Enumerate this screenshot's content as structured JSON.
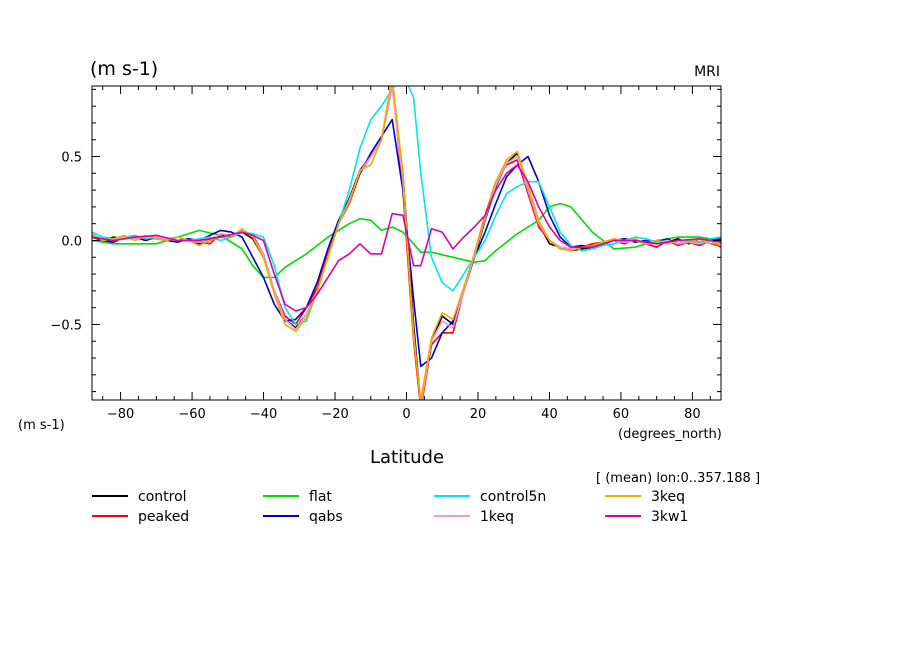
{
  "chart_data": {
    "type": "line",
    "title_left": "(m s-1)",
    "title_right": "MRI",
    "ylabel": "(m s-1)",
    "xlabel": "Latitude",
    "xunit": "(degrees_north)",
    "note": "[ (mean) lon:0..357.188 ]",
    "xlim": [
      -88,
      88
    ],
    "ylim": [
      -0.95,
      0.92
    ],
    "xticks": [
      -80,
      -60,
      -40,
      -20,
      0,
      20,
      40,
      60,
      80
    ],
    "xtick_labels": [
      "−80",
      "−60",
      "−40",
      "−20",
      "0",
      "20",
      "40",
      "60",
      "80"
    ],
    "yticks": [
      -0.5,
      0,
      0.5
    ],
    "ytick_labels": [
      "−0.5",
      "0.0",
      "0.5"
    ],
    "grid": false,
    "legend_position": "bottom",
    "series": [
      {
        "name": "control",
        "color": "#000000",
        "dashed": false,
        "x": [
          -88,
          -85,
          -82,
          -79,
          -76,
          -73,
          -70,
          -67,
          -64,
          -61,
          -58,
          -55,
          -52,
          -49,
          -46,
          -43,
          -40,
          -37,
          -34,
          -31,
          -28,
          -25,
          -22,
          -19,
          -16,
          -13,
          -10,
          -7,
          -4,
          -1,
          2,
          4,
          7,
          10,
          13,
          16,
          19,
          22,
          25,
          28,
          31,
          34,
          37,
          40,
          43,
          46,
          49,
          52,
          55,
          58,
          61,
          64,
          67,
          70,
          73,
          76,
          79,
          82,
          85,
          88
        ],
        "y": [
          0.03,
          0.0,
          0.02,
          0.01,
          0.02,
          0.0,
          0.02,
          0.01,
          0.0,
          0.01,
          -0.02,
          0.01,
          0.03,
          0.02,
          0.05,
          0.01,
          -0.1,
          -0.3,
          -0.47,
          -0.52,
          -0.44,
          -0.3,
          -0.1,
          0.1,
          0.25,
          0.42,
          0.5,
          0.6,
          0.92,
          0.4,
          -0.5,
          -0.98,
          -0.6,
          -0.45,
          -0.5,
          -0.3,
          -0.1,
          0.12,
          0.32,
          0.46,
          0.52,
          0.3,
          0.1,
          -0.02,
          -0.04,
          -0.06,
          -0.05,
          -0.04,
          -0.02,
          0.0,
          0.01,
          0.0,
          -0.02,
          0.0,
          -0.01,
          0.01,
          -0.02,
          0.01,
          -0.02,
          -0.03
        ]
      },
      {
        "name": "peaked",
        "color": "#ff0000",
        "dashed": false,
        "x": [
          -88,
          -85,
          -82,
          -79,
          -76,
          -73,
          -70,
          -67,
          -64,
          -61,
          -58,
          -55,
          -52,
          -49,
          -46,
          -43,
          -40,
          -37,
          -34,
          -31,
          -28,
          -25,
          -22,
          -19,
          -16,
          -13,
          -10,
          -7,
          -4,
          -1,
          2,
          4,
          7,
          10,
          13,
          16,
          19,
          22,
          25,
          28,
          31,
          34,
          37,
          40,
          43,
          46,
          49,
          52,
          55,
          58,
          61,
          64,
          67,
          70,
          73,
          76,
          79,
          82,
          85,
          88
        ],
        "y": [
          0.02,
          0.01,
          -0.01,
          0.02,
          0.01,
          0.02,
          0.03,
          0.01,
          0.0,
          0.0,
          -0.01,
          -0.02,
          0.04,
          0.03,
          0.06,
          0.03,
          -0.08,
          -0.3,
          -0.45,
          -0.5,
          -0.4,
          -0.28,
          -0.08,
          0.1,
          0.22,
          0.4,
          0.5,
          0.6,
          0.95,
          0.3,
          -0.6,
          -1.0,
          -0.62,
          -0.55,
          -0.55,
          -0.3,
          -0.08,
          0.15,
          0.35,
          0.45,
          0.48,
          0.28,
          0.08,
          0.0,
          -0.04,
          -0.05,
          -0.04,
          -0.02,
          -0.01,
          0.0,
          -0.02,
          0.01,
          -0.02,
          -0.04,
          0.0,
          -0.03,
          -0.01,
          -0.03,
          0.0,
          -0.04
        ]
      },
      {
        "name": "flat",
        "color": "#00dd00",
        "dashed": false,
        "x": [
          -88,
          -82,
          -76,
          -70,
          -64,
          -58,
          -52,
          -46,
          -43,
          -40,
          -37,
          -34,
          -28,
          -22,
          -16,
          -13,
          -10,
          -7,
          -4,
          -1,
          2,
          4,
          7,
          13,
          19,
          22,
          25,
          31,
          37,
          40,
          43,
          46,
          52,
          58,
          64,
          70,
          76,
          82,
          88
        ],
        "y": [
          0.0,
          -0.02,
          -0.02,
          -0.02,
          0.02,
          0.06,
          0.03,
          -0.05,
          -0.15,
          -0.22,
          -0.22,
          -0.16,
          -0.08,
          0.02,
          0.1,
          0.13,
          0.12,
          0.06,
          0.08,
          0.05,
          -0.02,
          -0.07,
          -0.07,
          -0.1,
          -0.13,
          -0.12,
          -0.06,
          0.04,
          0.12,
          0.2,
          0.22,
          0.2,
          0.05,
          -0.05,
          -0.04,
          0.0,
          0.02,
          0.02,
          0.0
        ]
      },
      {
        "name": "qabs",
        "color": "#0000cc",
        "dashed": false,
        "x": [
          -88,
          -85,
          -82,
          -79,
          -76,
          -73,
          -70,
          -67,
          -64,
          -61,
          -58,
          -55,
          -52,
          -49,
          -46,
          -43,
          -40,
          -37,
          -34,
          -31,
          -28,
          -25,
          -22,
          -19,
          -16,
          -13,
          -10,
          -7,
          -4,
          -1,
          2,
          4,
          7,
          10,
          13,
          16,
          19,
          22,
          25,
          28,
          31,
          34,
          37,
          40,
          43,
          46,
          49,
          52,
          55,
          58,
          61,
          64,
          67,
          70,
          73,
          76,
          79,
          82,
          85,
          88
        ],
        "y": [
          0.02,
          0.0,
          -0.01,
          0.02,
          0.01,
          0.02,
          0.01,
          0.0,
          -0.01,
          0.01,
          0.0,
          0.03,
          0.06,
          0.05,
          0.02,
          -0.1,
          -0.22,
          -0.38,
          -0.48,
          -0.47,
          -0.4,
          -0.25,
          -0.05,
          0.12,
          0.25,
          0.4,
          0.52,
          0.62,
          0.72,
          0.3,
          -0.35,
          -0.75,
          -0.7,
          -0.55,
          -0.48,
          -0.3,
          -0.1,
          0.05,
          0.22,
          0.38,
          0.45,
          0.5,
          0.35,
          0.15,
          0.02,
          -0.04,
          -0.03,
          -0.04,
          -0.02,
          0.0,
          0.01,
          -0.01,
          0.0,
          -0.01,
          0.01,
          -0.02,
          0.0,
          -0.01,
          0.0,
          0.01
        ]
      },
      {
        "name": "control5n",
        "color": "#00e5ee",
        "dashed": false,
        "x": [
          -88,
          -85,
          -82,
          -79,
          -76,
          -73,
          -70,
          -67,
          -64,
          -61,
          -58,
          -55,
          -52,
          -49,
          -46,
          -43,
          -40,
          -37,
          -34,
          -31,
          -28,
          -25,
          -22,
          -19,
          -16,
          -13,
          -10,
          -7,
          -4,
          -1,
          2,
          4,
          7,
          10,
          13,
          16,
          19,
          22,
          25,
          28,
          31,
          34,
          37,
          40,
          43,
          46,
          49,
          52,
          55,
          58,
          61,
          64,
          67,
          70,
          73,
          76,
          79,
          82,
          85,
          88
        ],
        "y": [
          0.05,
          0.02,
          0.01,
          0.02,
          0.03,
          0.01,
          0.02,
          0.01,
          0.02,
          0.0,
          0.01,
          0.02,
          0.0,
          0.02,
          0.05,
          0.04,
          0.02,
          -0.15,
          -0.4,
          -0.5,
          -0.48,
          -0.3,
          -0.1,
          0.1,
          0.3,
          0.55,
          0.72,
          0.8,
          0.9,
          1.0,
          0.85,
          0.4,
          -0.1,
          -0.25,
          -0.3,
          -0.2,
          -0.1,
          0.0,
          0.15,
          0.28,
          0.32,
          0.35,
          0.35,
          0.2,
          0.05,
          -0.03,
          -0.06,
          -0.05,
          -0.03,
          -0.02,
          0.0,
          0.02,
          0.01,
          -0.01,
          0.0,
          -0.02,
          0.0,
          -0.01,
          0.01,
          0.02
        ]
      },
      {
        "name": "1keq",
        "color": "#ee99dd",
        "dashed": false,
        "x": [
          -88,
          -85,
          -82,
          -79,
          -76,
          -73,
          -70,
          -67,
          -64,
          -61,
          -58,
          -55,
          -52,
          -49,
          -46,
          -43,
          -40,
          -37,
          -34,
          -31,
          -28,
          -25,
          -22,
          -19,
          -16,
          -13,
          -10,
          -7,
          -4,
          -1,
          2,
          4,
          7,
          10,
          13,
          16,
          19,
          22,
          25,
          28,
          31,
          34,
          37,
          40,
          43,
          46,
          49,
          52,
          55,
          58,
          61,
          64,
          67,
          70,
          73,
          76,
          79,
          82,
          85,
          88
        ],
        "y": [
          0.03,
          0.01,
          0.0,
          0.02,
          0.01,
          0.02,
          0.02,
          0.01,
          0.0,
          0.0,
          -0.01,
          0.0,
          0.04,
          0.03,
          0.06,
          0.02,
          -0.08,
          -0.3,
          -0.47,
          -0.53,
          -0.44,
          -0.3,
          -0.1,
          0.1,
          0.24,
          0.41,
          0.5,
          0.6,
          0.92,
          0.35,
          -0.55,
          -0.98,
          -0.6,
          -0.48,
          -0.52,
          -0.3,
          -0.09,
          0.13,
          0.33,
          0.46,
          0.5,
          0.3,
          0.1,
          0.0,
          -0.04,
          -0.05,
          -0.04,
          -0.03,
          -0.01,
          0.0,
          -0.01,
          0.0,
          -0.02,
          -0.02,
          0.0,
          -0.02,
          -0.01,
          -0.02,
          0.0,
          -0.03
        ]
      },
      {
        "name": "3keq",
        "color": "#eeaa00",
        "dashed": false,
        "x": [
          -88,
          -85,
          -82,
          -79,
          -76,
          -73,
          -70,
          -67,
          -64,
          -61,
          -58,
          -55,
          -52,
          -49,
          -46,
          -43,
          -40,
          -37,
          -34,
          -31,
          -28,
          -25,
          -22,
          -19,
          -16,
          -13,
          -10,
          -7,
          -4,
          -1,
          2,
          4,
          7,
          10,
          13,
          16,
          19,
          22,
          25,
          28,
          31,
          34,
          37,
          40,
          43,
          46,
          49,
          52,
          55,
          58,
          61,
          64,
          67,
          70,
          73,
          76,
          79,
          82,
          85,
          88
        ],
        "y": [
          0.04,
          0.0,
          0.01,
          0.03,
          0.0,
          0.03,
          0.01,
          0.0,
          0.02,
          0.0,
          -0.03,
          0.0,
          0.02,
          0.02,
          0.07,
          0.02,
          -0.1,
          -0.32,
          -0.5,
          -0.54,
          -0.46,
          -0.3,
          -0.1,
          0.1,
          0.23,
          0.42,
          0.45,
          0.6,
          0.97,
          0.4,
          -0.58,
          -0.95,
          -0.58,
          -0.43,
          -0.47,
          -0.28,
          -0.08,
          0.14,
          0.35,
          0.48,
          0.53,
          0.33,
          0.12,
          0.0,
          -0.05,
          -0.06,
          -0.04,
          -0.03,
          -0.01,
          0.01,
          0.0,
          0.01,
          -0.02,
          0.0,
          -0.02,
          0.0,
          -0.01,
          0.01,
          -0.02,
          -0.02
        ]
      },
      {
        "name": "3kw1",
        "color": "#dd00aa",
        "dashed": false,
        "x": [
          -88,
          -82,
          -76,
          -70,
          -64,
          -58,
          -52,
          -46,
          -43,
          -40,
          -37,
          -34,
          -31,
          -28,
          -25,
          -22,
          -19,
          -16,
          -13,
          -10,
          -7,
          -4,
          -1,
          2,
          4,
          7,
          10,
          13,
          16,
          19,
          22,
          25,
          28,
          31,
          34,
          37,
          40,
          43,
          46,
          52,
          58,
          64,
          70,
          76,
          82,
          88
        ],
        "y": [
          0.02,
          0.0,
          0.02,
          0.03,
          0.0,
          0.0,
          0.02,
          0.05,
          0.03,
          0.0,
          -0.2,
          -0.38,
          -0.42,
          -0.4,
          -0.32,
          -0.22,
          -0.12,
          -0.08,
          -0.02,
          -0.08,
          -0.08,
          0.16,
          0.15,
          -0.15,
          -0.15,
          0.07,
          0.05,
          -0.05,
          0.02,
          0.08,
          0.15,
          0.3,
          0.4,
          0.45,
          0.35,
          0.2,
          0.08,
          0.0,
          -0.04,
          -0.04,
          0.0,
          0.0,
          -0.02,
          0.0,
          0.01,
          -0.01
        ]
      }
    ]
  }
}
